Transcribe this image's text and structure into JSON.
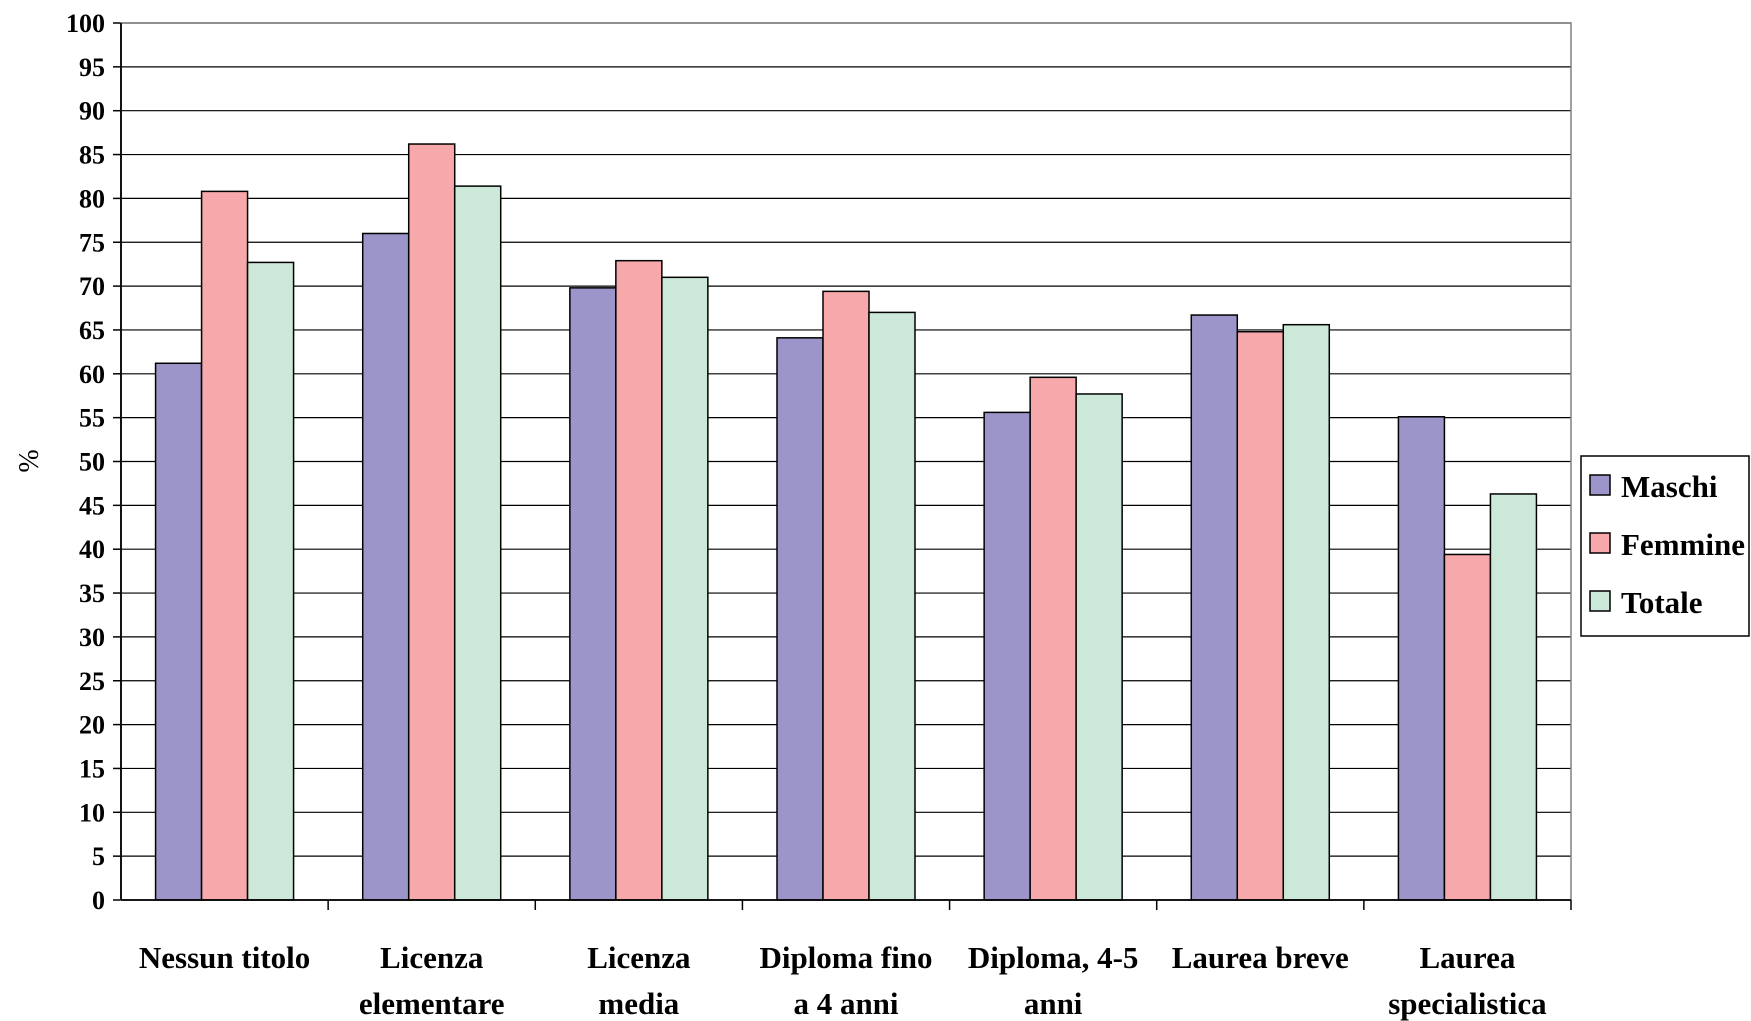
{
  "chart_data": {
    "type": "bar",
    "title": "",
    "xlabel": "",
    "ylabel": "%",
    "ylim": [
      0,
      100
    ],
    "ytick_step": 5,
    "grid": true,
    "legend_position": "right",
    "categories": [
      [
        "Nessun titolo"
      ],
      [
        "Licenza",
        "elementare"
      ],
      [
        "Licenza",
        "media"
      ],
      [
        "Diploma fino",
        "a 4 anni"
      ],
      [
        "Diploma, 4-5",
        "anni"
      ],
      [
        "Laurea breve"
      ],
      [
        "Laurea",
        "specialistica"
      ]
    ],
    "series": [
      {
        "name": "Maschi",
        "color": "#9b95c9",
        "values": [
          61.2,
          76.0,
          69.8,
          64.1,
          55.6,
          66.7,
          55.1
        ]
      },
      {
        "name": "Femmine",
        "color": "#f6a8ab",
        "values": [
          80.8,
          86.2,
          72.9,
          69.4,
          59.6,
          64.8,
          39.4
        ]
      },
      {
        "name": "Totale",
        "color": "#cce8d8",
        "values": [
          72.7,
          81.4,
          71.0,
          67.0,
          57.7,
          65.6,
          46.3
        ]
      }
    ]
  }
}
